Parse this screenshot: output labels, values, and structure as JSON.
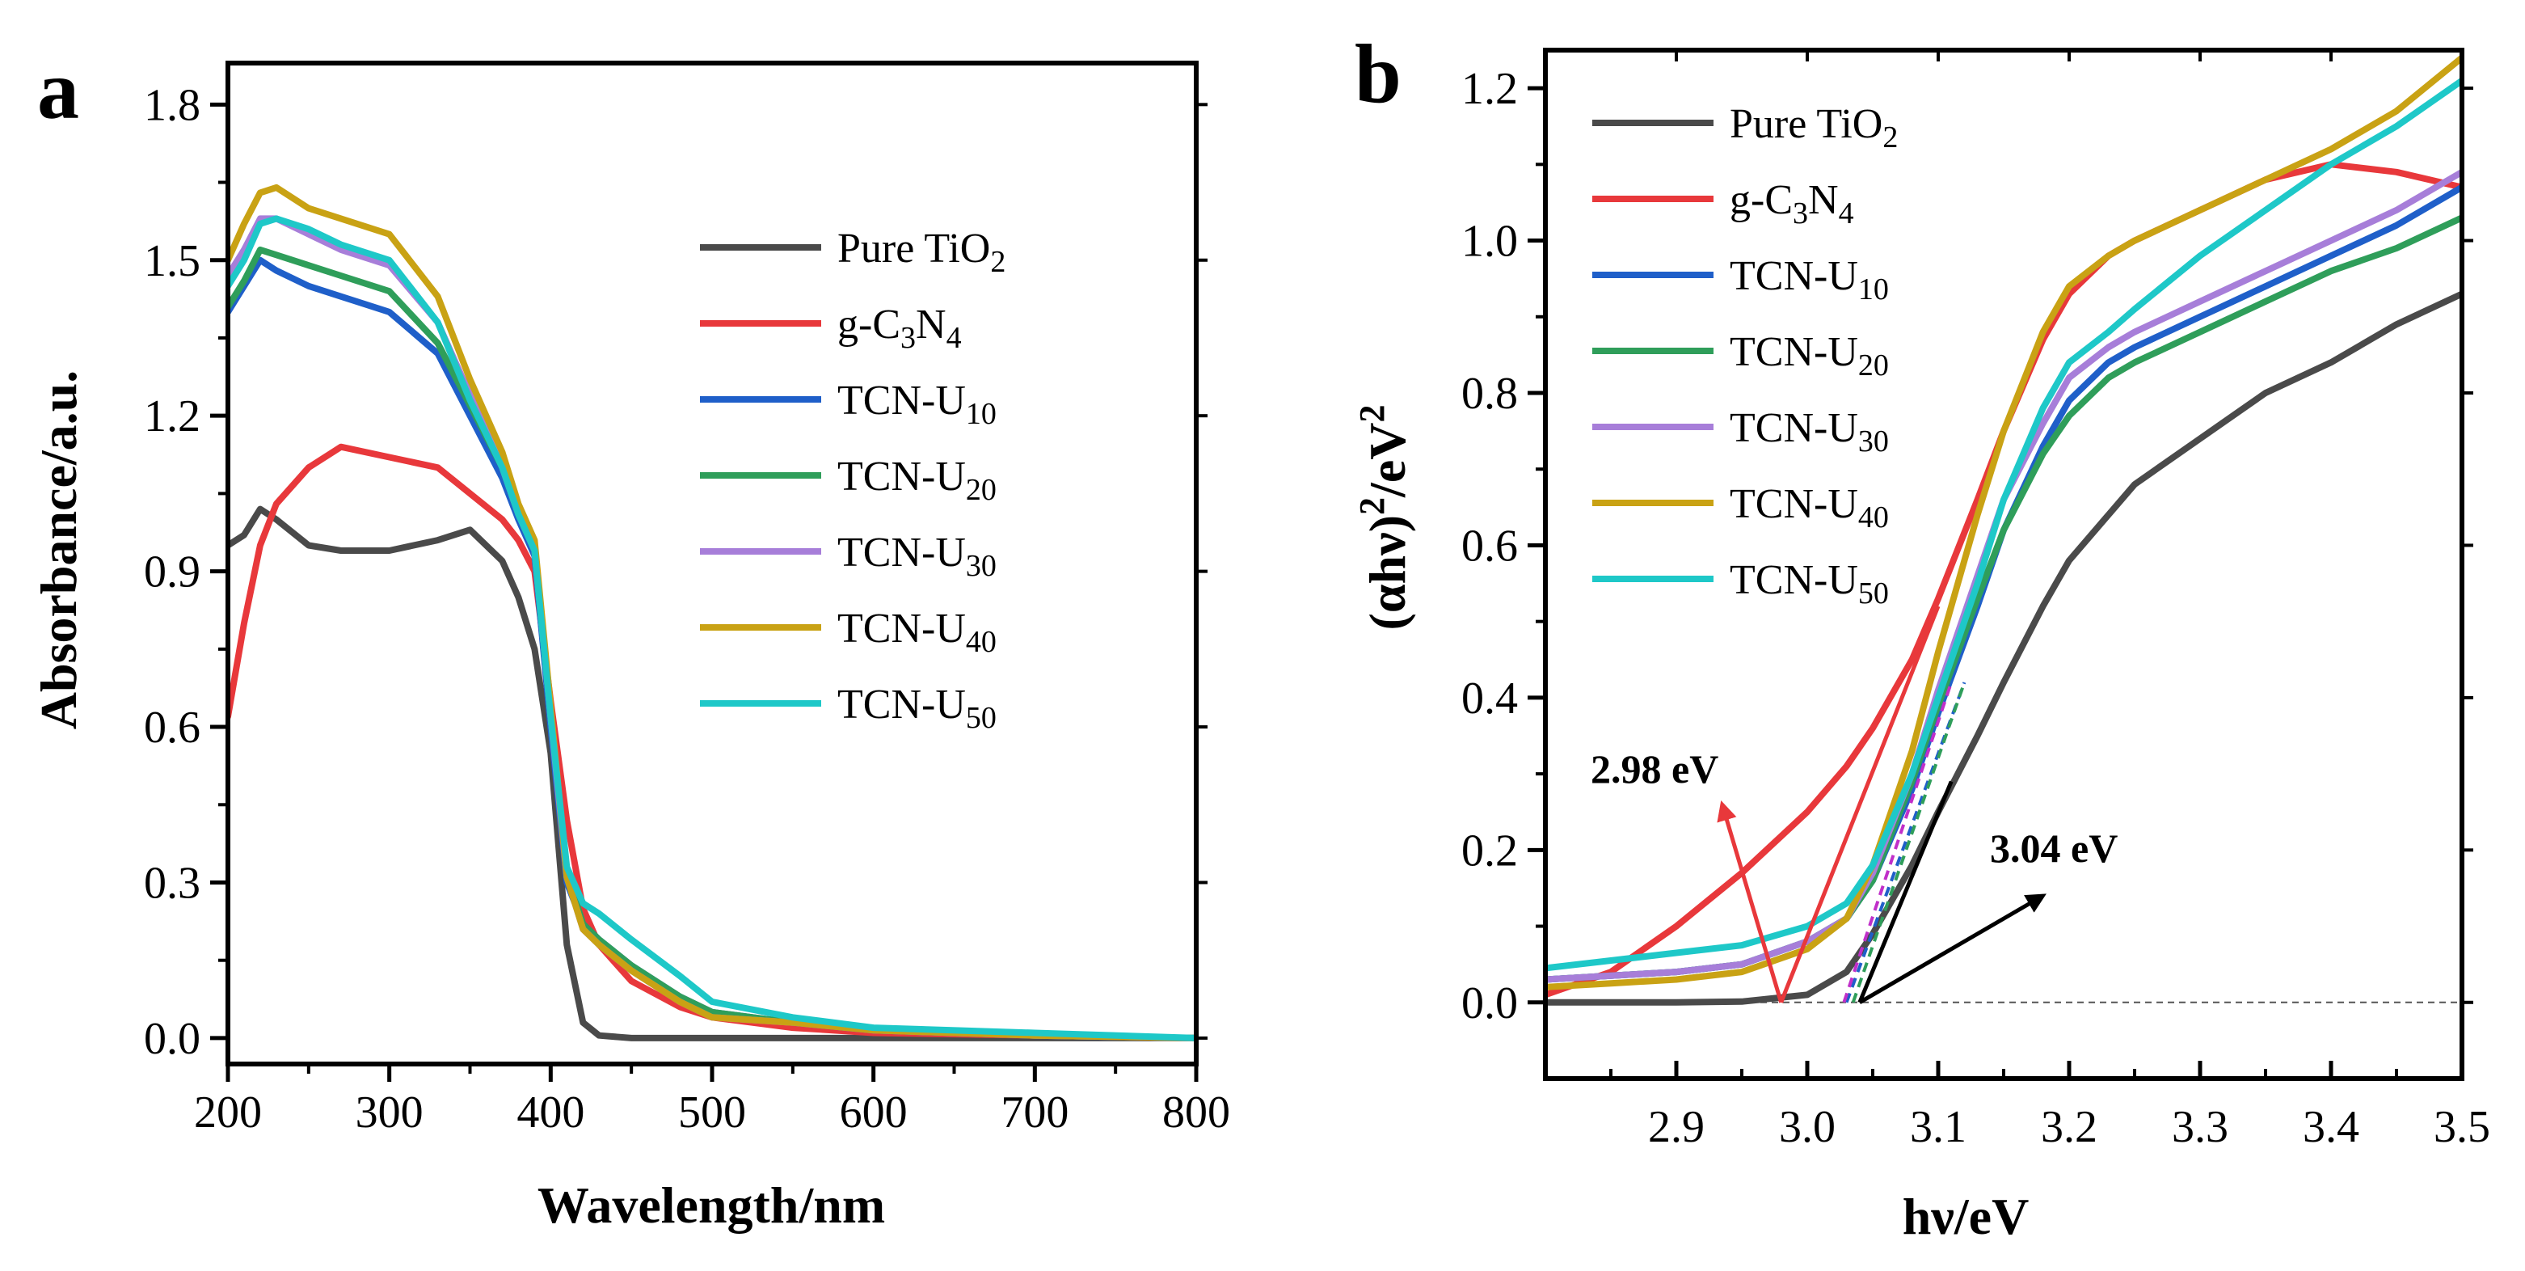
{
  "chart_data": [
    {
      "type": "line",
      "panel": "a",
      "title": "",
      "xlabel": "Wavelength/nm",
      "ylabel": "Absorbance/a.u.",
      "xlim": [
        200,
        800
      ],
      "ylim": [
        -0.05,
        1.88
      ],
      "xticks": [
        200,
        300,
        400,
        500,
        600,
        700,
        800
      ],
      "xtick_labels": [
        "200",
        "300",
        "400",
        "500",
        "600",
        "700",
        "800"
      ],
      "yticks": [
        0.0,
        0.3,
        0.6,
        0.9,
        1.2,
        1.5,
        1.8
      ],
      "ytick_labels": [
        "0.0",
        "0.3",
        "0.6",
        "0.9",
        "1.2",
        "1.5",
        "1.8"
      ],
      "grid": false,
      "legend_position": "right",
      "x": [
        200,
        210,
        220,
        230,
        250,
        270,
        300,
        330,
        350,
        370,
        380,
        390,
        400,
        410,
        420,
        430,
        450,
        480,
        500,
        550,
        600,
        700,
        800
      ],
      "series": [
        {
          "name": "Pure TiO₂",
          "label_main": "Pure TiO",
          "label_sub": "2",
          "color": "#4a4a4a",
          "values": [
            0.95,
            0.97,
            1.02,
            1.0,
            0.95,
            0.94,
            0.94,
            0.96,
            0.98,
            0.92,
            0.85,
            0.75,
            0.55,
            0.18,
            0.03,
            0.005,
            0.0,
            0.0,
            0.0,
            0.0,
            0.0,
            0.0,
            0.0
          ]
        },
        {
          "name": "g-C₃N₄",
          "label_main": "g-C",
          "label_sub": "3",
          "label_main2": "N",
          "label_sub2": "4",
          "color": "#e8383b",
          "values": [
            0.62,
            0.8,
            0.95,
            1.03,
            1.1,
            1.14,
            1.12,
            1.1,
            1.05,
            1.0,
            0.96,
            0.9,
            0.65,
            0.42,
            0.25,
            0.18,
            0.11,
            0.06,
            0.04,
            0.02,
            0.01,
            0.005,
            0.0
          ]
        },
        {
          "name": "TCN-U₁₀",
          "label_main": "TCN-U",
          "label_sub": "10",
          "color": "#1f5fc9",
          "values": [
            1.4,
            1.45,
            1.5,
            1.48,
            1.45,
            1.43,
            1.4,
            1.32,
            1.2,
            1.08,
            1.0,
            0.93,
            0.6,
            0.3,
            0.22,
            0.19,
            0.14,
            0.08,
            0.05,
            0.03,
            0.015,
            0.005,
            0.0
          ]
        },
        {
          "name": "TCN-U₂₀",
          "label_main": "TCN-U",
          "label_sub": "20",
          "color": "#2f9e5a",
          "values": [
            1.41,
            1.46,
            1.52,
            1.51,
            1.49,
            1.47,
            1.44,
            1.34,
            1.22,
            1.1,
            1.01,
            0.94,
            0.62,
            0.32,
            0.22,
            0.19,
            0.14,
            0.08,
            0.05,
            0.03,
            0.015,
            0.005,
            0.0
          ]
        },
        {
          "name": "TCN-U₃₀",
          "label_main": "TCN-U",
          "label_sub": "30",
          "color": "#a77ed9",
          "values": [
            1.47,
            1.52,
            1.58,
            1.58,
            1.55,
            1.52,
            1.49,
            1.38,
            1.24,
            1.1,
            1.01,
            0.94,
            0.62,
            0.31,
            0.21,
            0.18,
            0.13,
            0.07,
            0.04,
            0.03,
            0.015,
            0.005,
            0.0
          ]
        },
        {
          "name": "TCN-U₄₀",
          "label_main": "TCN-U",
          "label_sub": "40",
          "color": "#c9a214",
          "values": [
            1.5,
            1.57,
            1.63,
            1.64,
            1.6,
            1.58,
            1.55,
            1.43,
            1.27,
            1.13,
            1.03,
            0.96,
            0.64,
            0.31,
            0.21,
            0.18,
            0.13,
            0.07,
            0.04,
            0.03,
            0.015,
            0.005,
            0.0
          ]
        },
        {
          "name": "TCN-U₅₀",
          "label_main": "TCN-U",
          "label_sub": "50",
          "color": "#1ec8c8",
          "values": [
            1.45,
            1.5,
            1.57,
            1.58,
            1.56,
            1.53,
            1.5,
            1.38,
            1.23,
            1.1,
            1.01,
            0.94,
            0.62,
            0.33,
            0.26,
            0.24,
            0.19,
            0.12,
            0.07,
            0.04,
            0.02,
            0.01,
            0.0
          ]
        }
      ]
    },
    {
      "type": "line",
      "panel": "b",
      "title": "",
      "xlabel": "hν/eV",
      "ylabel_main": "(αhν)",
      "ylabel_sup1": "2",
      "ylabel_mid": "/eV",
      "ylabel_sup2": "2",
      "xlim": [
        2.8,
        3.5
      ],
      "ylim": [
        -0.1,
        1.25
      ],
      "xticks": [
        2.9,
        3.0,
        3.1,
        3.2,
        3.3,
        3.4,
        3.5
      ],
      "xtick_labels": [
        "2.9",
        "3.0",
        "3.1",
        "3.2",
        "3.3",
        "3.4",
        "3.5"
      ],
      "yticks": [
        0.0,
        0.2,
        0.4,
        0.6,
        0.8,
        1.0,
        1.2
      ],
      "ytick_labels": [
        "0.0",
        "0.2",
        "0.4",
        "0.6",
        "0.8",
        "1.0",
        "1.2"
      ],
      "grid": false,
      "legend_position": "top-left",
      "x": [
        2.8,
        2.85,
        2.9,
        2.95,
        3.0,
        3.03,
        3.05,
        3.08,
        3.1,
        3.13,
        3.15,
        3.18,
        3.2,
        3.23,
        3.25,
        3.3,
        3.35,
        3.4,
        3.45,
        3.5
      ],
      "series": [
        {
          "name": "Pure TiO₂",
          "label_main": "Pure TiO",
          "label_sub": "2",
          "color": "#4a4a4a",
          "values": [
            0.0,
            0.0,
            0.0,
            0.001,
            0.01,
            0.04,
            0.09,
            0.18,
            0.25,
            0.35,
            0.42,
            0.52,
            0.58,
            0.64,
            0.68,
            0.74,
            0.8,
            0.84,
            0.89,
            0.93
          ]
        },
        {
          "name": "g-C₃N₄",
          "label_main": "g-C",
          "label_sub": "3",
          "label_main2": "N",
          "label_sub2": "4",
          "color": "#e8383b",
          "values": [
            0.01,
            0.04,
            0.1,
            0.17,
            0.25,
            0.31,
            0.36,
            0.45,
            0.53,
            0.66,
            0.75,
            0.87,
            0.93,
            0.98,
            1.0,
            1.04,
            1.08,
            1.1,
            1.09,
            1.07
          ]
        },
        {
          "name": "TCN-U₁₀",
          "label_main": "TCN-U",
          "label_sub": "10",
          "color": "#1f5fc9",
          "values": [
            0.03,
            0.035,
            0.04,
            0.05,
            0.08,
            0.11,
            0.16,
            0.28,
            0.38,
            0.52,
            0.62,
            0.73,
            0.79,
            0.84,
            0.86,
            0.9,
            0.94,
            0.98,
            1.02,
            1.07
          ]
        },
        {
          "name": "TCN-U₂₀",
          "label_main": "TCN-U",
          "label_sub": "20",
          "color": "#2f9e5a",
          "values": [
            0.03,
            0.035,
            0.04,
            0.05,
            0.08,
            0.11,
            0.16,
            0.29,
            0.39,
            0.53,
            0.62,
            0.72,
            0.77,
            0.82,
            0.84,
            0.88,
            0.92,
            0.96,
            0.99,
            1.03
          ]
        },
        {
          "name": "TCN-U₃₀",
          "label_main": "TCN-U",
          "label_sub": "30",
          "color": "#a77ed9",
          "values": [
            0.03,
            0.035,
            0.04,
            0.05,
            0.08,
            0.11,
            0.17,
            0.3,
            0.41,
            0.56,
            0.66,
            0.76,
            0.82,
            0.86,
            0.88,
            0.92,
            0.96,
            1.0,
            1.04,
            1.09
          ]
        },
        {
          "name": "TCN-U₄₀",
          "label_main": "TCN-U",
          "label_sub": "40",
          "color": "#c9a214",
          "values": [
            0.02,
            0.025,
            0.03,
            0.04,
            0.07,
            0.11,
            0.18,
            0.33,
            0.46,
            0.64,
            0.75,
            0.88,
            0.94,
            0.98,
            1.0,
            1.04,
            1.08,
            1.12,
            1.17,
            1.24
          ]
        },
        {
          "name": "TCN-U₅₀",
          "label_main": "TCN-U",
          "label_sub": "50",
          "color": "#1ec8c8",
          "values": [
            0.045,
            0.055,
            0.065,
            0.075,
            0.1,
            0.13,
            0.18,
            0.3,
            0.4,
            0.55,
            0.66,
            0.78,
            0.84,
            0.88,
            0.91,
            0.98,
            1.04,
            1.1,
            1.15,
            1.21
          ]
        }
      ],
      "annotations": [
        {
          "text": "2.98 eV",
          "value": 2.98,
          "color": "#e8383b",
          "tangent_from": [
            2.98,
            0.0
          ],
          "tangent_to": [
            3.1,
            0.52
          ],
          "arrow_from": [
            2.98,
            0.0
          ],
          "arrow_to": [
            2.935,
            0.26
          ]
        },
        {
          "text": "3.04 eV",
          "value": 3.04,
          "color": "#000000",
          "tangent_from": [
            3.04,
            0.0
          ],
          "tangent_to": [
            3.11,
            0.29
          ],
          "arrow_from": [
            3.04,
            0.0
          ],
          "arrow_to": [
            3.18,
            0.14
          ]
        }
      ],
      "dashed_tangents": [
        {
          "series": "TCN-U₁₀",
          "x0": 3.03,
          "x1": 3.12,
          "color": "#1f5fc9"
        },
        {
          "series": "TCN-U₃₀",
          "x0": 3.028,
          "x1": 3.11,
          "color": "#c02fc9"
        },
        {
          "series": "TCN-U₂₀",
          "x0": 3.035,
          "x1": 3.12,
          "color": "#2f9e5a"
        }
      ]
    }
  ]
}
